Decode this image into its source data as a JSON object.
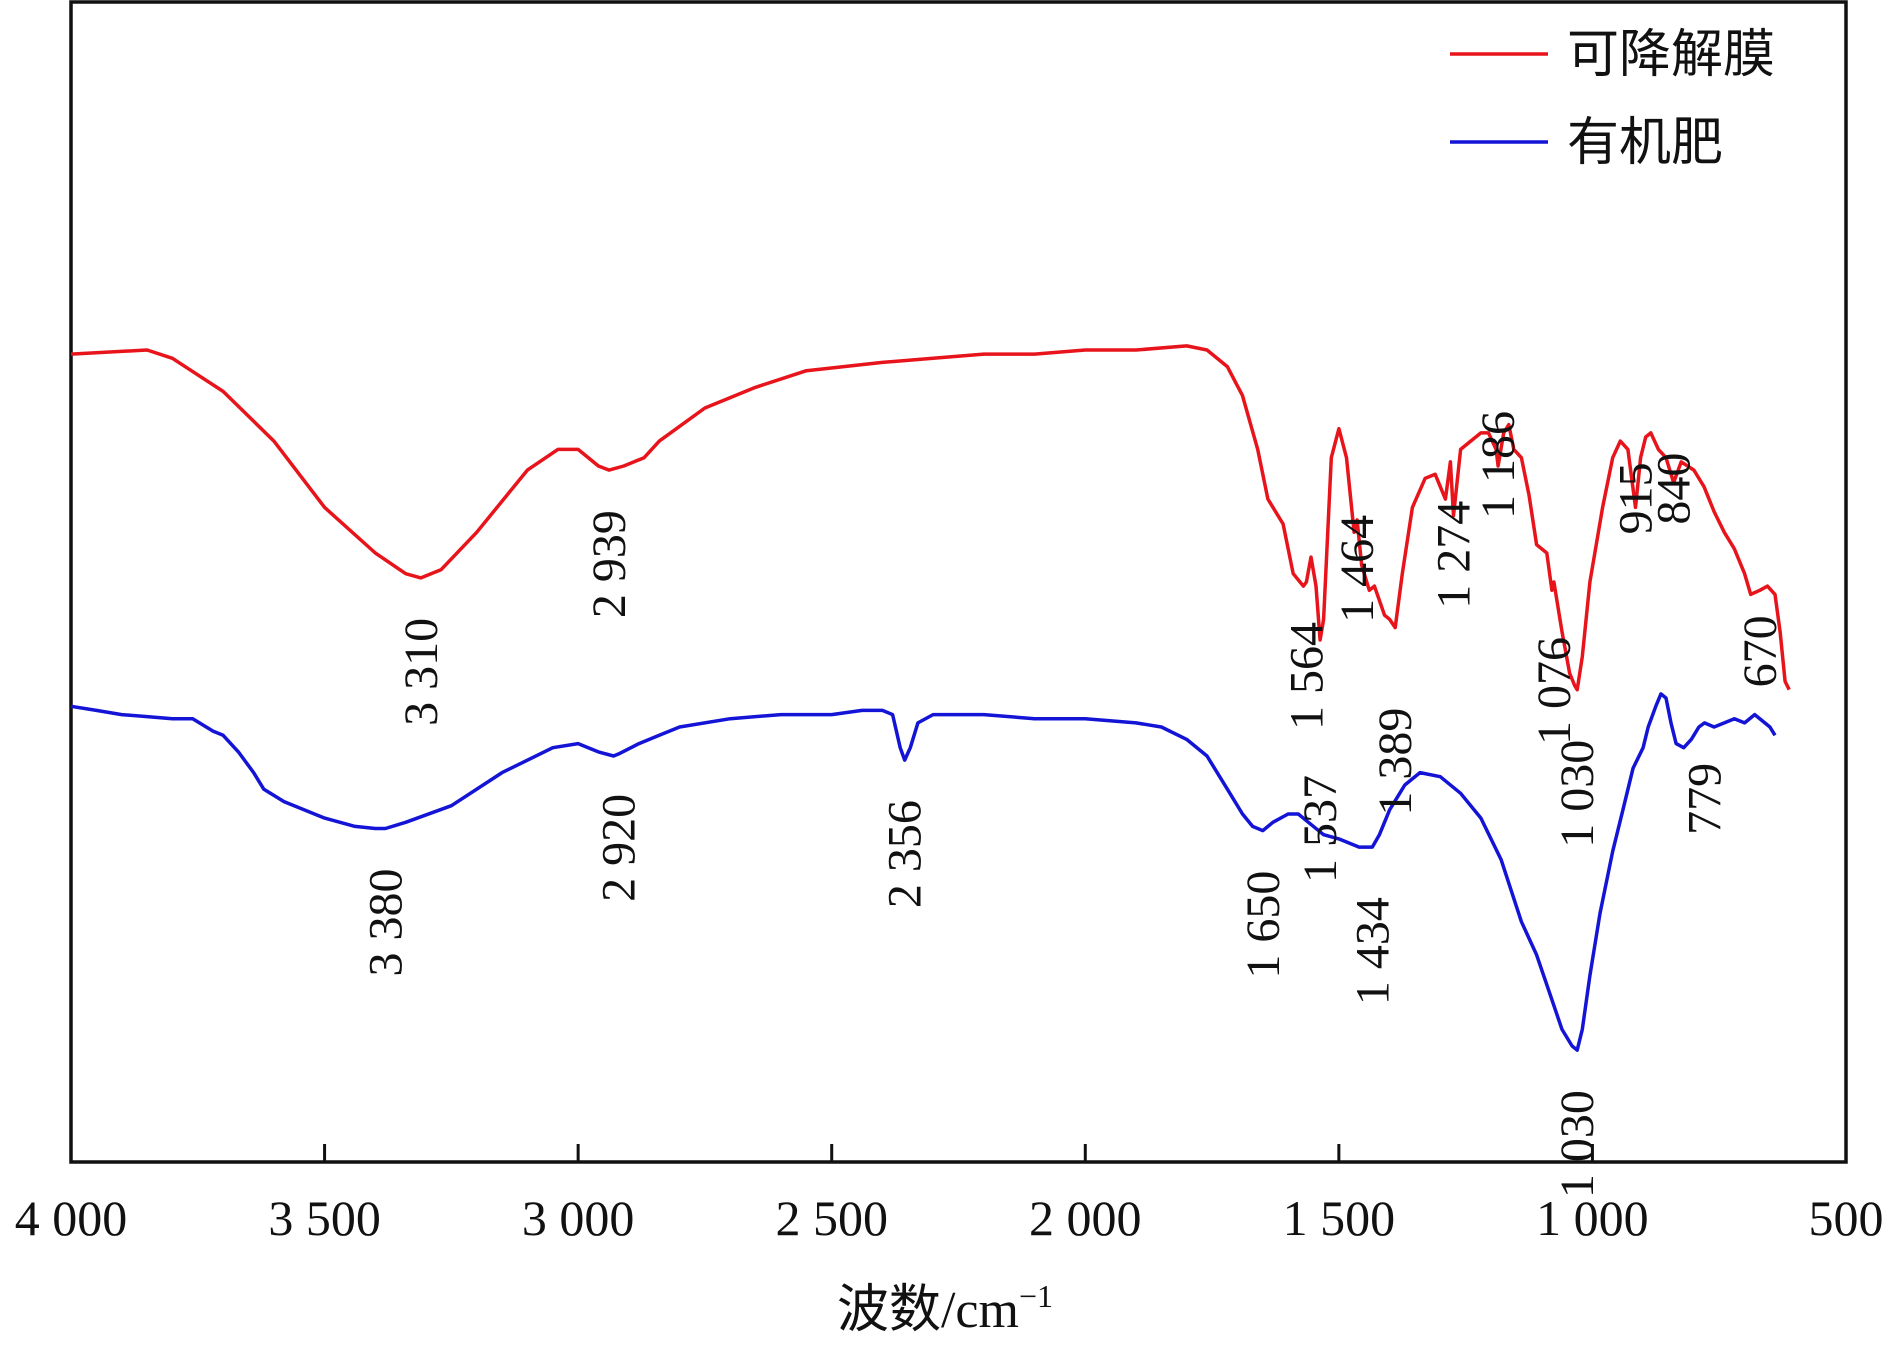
{
  "chart_data": {
    "type": "line",
    "title": "",
    "xlabel": "波数/cm",
    "xlabel_superscript": "−1",
    "ylabel": "",
    "xlim": [
      4000,
      500
    ],
    "x_reversed": true,
    "x_ticks": [
      4000,
      3500,
      3000,
      2500,
      2000,
      1500,
      1000,
      500
    ],
    "x_tick_labels": [
      "4 000",
      "3 500",
      "3 000",
      "2 500",
      "2 000",
      "1 500",
      "1 000",
      "500"
    ],
    "y_axis_visible_ticks": false,
    "grid": false,
    "legend_position": "top-right",
    "series": [
      {
        "name": "可降解膜",
        "color": "#e8141b",
        "points": [
          [
            4000,
            85
          ],
          [
            3850,
            84
          ],
          [
            3800,
            86
          ],
          [
            3700,
            94
          ],
          [
            3600,
            106
          ],
          [
            3500,
            122
          ],
          [
            3400,
            133
          ],
          [
            3340,
            138
          ],
          [
            3310,
            139
          ],
          [
            3270,
            137
          ],
          [
            3200,
            128
          ],
          [
            3100,
            113
          ],
          [
            3040,
            108
          ],
          [
            3000,
            108
          ],
          [
            2960,
            112
          ],
          [
            2939,
            113
          ],
          [
            2910,
            112
          ],
          [
            2870,
            110
          ],
          [
            2840,
            106
          ],
          [
            2750,
            98
          ],
          [
            2650,
            93
          ],
          [
            2550,
            89
          ],
          [
            2400,
            87
          ],
          [
            2300,
            86
          ],
          [
            2200,
            85
          ],
          [
            2100,
            85
          ],
          [
            2000,
            84
          ],
          [
            1900,
            84
          ],
          [
            1800,
            83
          ],
          [
            1760,
            84
          ],
          [
            1720,
            88
          ],
          [
            1690,
            95
          ],
          [
            1660,
            108
          ],
          [
            1640,
            120
          ],
          [
            1610,
            126
          ],
          [
            1590,
            138
          ],
          [
            1570,
            141
          ],
          [
            1564,
            140
          ],
          [
            1555,
            134
          ],
          [
            1545,
            141
          ],
          [
            1537,
            154
          ],
          [
            1530,
            149
          ],
          [
            1515,
            110
          ],
          [
            1500,
            103
          ],
          [
            1485,
            110
          ],
          [
            1470,
            128
          ],
          [
            1464,
            125
          ],
          [
            1455,
            136
          ],
          [
            1440,
            142
          ],
          [
            1430,
            141
          ],
          [
            1410,
            148
          ],
          [
            1400,
            149
          ],
          [
            1389,
            151
          ],
          [
            1375,
            138
          ],
          [
            1355,
            122
          ],
          [
            1330,
            115
          ],
          [
            1310,
            114
          ],
          [
            1290,
            120
          ],
          [
            1280,
            111
          ],
          [
            1274,
            124
          ],
          [
            1260,
            108
          ],
          [
            1240,
            106
          ],
          [
            1220,
            104
          ],
          [
            1205,
            104
          ],
          [
            1190,
            108
          ],
          [
            1186,
            112
          ],
          [
            1175,
            104
          ],
          [
            1165,
            102
          ],
          [
            1155,
            108
          ],
          [
            1140,
            110
          ],
          [
            1125,
            119
          ],
          [
            1110,
            131
          ],
          [
            1090,
            133
          ],
          [
            1080,
            142
          ],
          [
            1076,
            140
          ],
          [
            1060,
            152
          ],
          [
            1045,
            162
          ],
          [
            1035,
            165
          ],
          [
            1030,
            166
          ],
          [
            1020,
            158
          ],
          [
            1005,
            140
          ],
          [
            980,
            122
          ],
          [
            960,
            110
          ],
          [
            945,
            106
          ],
          [
            930,
            108
          ],
          [
            915,
            122
          ],
          [
            905,
            110
          ],
          [
            895,
            105
          ],
          [
            885,
            104
          ],
          [
            870,
            108
          ],
          [
            855,
            110
          ],
          [
            840,
            116
          ],
          [
            825,
            111
          ],
          [
            800,
            113
          ],
          [
            780,
            117
          ],
          [
            760,
            123
          ],
          [
            740,
            128
          ],
          [
            720,
            132
          ],
          [
            700,
            138
          ],
          [
            688,
            143
          ],
          [
            670,
            142
          ],
          [
            655,
            141
          ],
          [
            640,
            143
          ],
          [
            630,
            152
          ],
          [
            620,
            164
          ],
          [
            612,
            166
          ]
        ]
      },
      {
        "name": "有机肥",
        "color": "#1414d6",
        "points": [
          [
            4000,
            170
          ],
          [
            3950,
            171
          ],
          [
            3900,
            172
          ],
          [
            3850,
            172.5
          ],
          [
            3800,
            173
          ],
          [
            3760,
            173
          ],
          [
            3720,
            176
          ],
          [
            3700,
            177
          ],
          [
            3670,
            181
          ],
          [
            3640,
            186
          ],
          [
            3620,
            190
          ],
          [
            3580,
            193
          ],
          [
            3500,
            197
          ],
          [
            3440,
            199
          ],
          [
            3400,
            199.5
          ],
          [
            3380,
            199.5
          ],
          [
            3340,
            198
          ],
          [
            3250,
            194
          ],
          [
            3150,
            186
          ],
          [
            3050,
            180
          ],
          [
            3000,
            179
          ],
          [
            2960,
            181
          ],
          [
            2930,
            182
          ],
          [
            2920,
            181.5
          ],
          [
            2880,
            179
          ],
          [
            2840,
            177
          ],
          [
            2800,
            175
          ],
          [
            2700,
            173
          ],
          [
            2600,
            172
          ],
          [
            2500,
            172
          ],
          [
            2440,
            171
          ],
          [
            2400,
            171
          ],
          [
            2380,
            172
          ],
          [
            2365,
            180
          ],
          [
            2356,
            183
          ],
          [
            2345,
            180
          ],
          [
            2330,
            174
          ],
          [
            2300,
            172
          ],
          [
            2200,
            172
          ],
          [
            2100,
            173
          ],
          [
            2000,
            173
          ],
          [
            1900,
            174
          ],
          [
            1850,
            175
          ],
          [
            1800,
            178
          ],
          [
            1760,
            182
          ],
          [
            1720,
            190
          ],
          [
            1690,
            196
          ],
          [
            1670,
            199
          ],
          [
            1650,
            200
          ],
          [
            1630,
            198
          ],
          [
            1600,
            196
          ],
          [
            1580,
            196
          ],
          [
            1560,
            198
          ],
          [
            1530,
            201
          ],
          [
            1500,
            202
          ],
          [
            1480,
            203
          ],
          [
            1460,
            204
          ],
          [
            1434,
            204
          ],
          [
            1420,
            201
          ],
          [
            1400,
            195
          ],
          [
            1370,
            189
          ],
          [
            1340,
            186
          ],
          [
            1300,
            187
          ],
          [
            1260,
            191
          ],
          [
            1220,
            197
          ],
          [
            1180,
            207
          ],
          [
            1140,
            222
          ],
          [
            1110,
            230
          ],
          [
            1085,
            239
          ],
          [
            1060,
            248
          ],
          [
            1040,
            252
          ],
          [
            1030,
            253
          ],
          [
            1020,
            248
          ],
          [
            1005,
            235
          ],
          [
            985,
            220
          ],
          [
            960,
            205
          ],
          [
            940,
            195
          ],
          [
            920,
            185
          ],
          [
            900,
            180
          ],
          [
            890,
            175
          ],
          [
            875,
            170
          ],
          [
            865,
            167
          ],
          [
            855,
            168
          ],
          [
            845,
            174
          ],
          [
            835,
            179
          ],
          [
            820,
            180
          ],
          [
            805,
            178
          ],
          [
            790,
            175
          ],
          [
            779,
            174
          ],
          [
            760,
            175
          ],
          [
            740,
            174
          ],
          [
            720,
            173
          ],
          [
            700,
            174
          ],
          [
            680,
            172
          ],
          [
            670,
            173
          ],
          [
            650,
            175
          ],
          [
            640,
            177
          ]
        ]
      }
    ],
    "annotations": [
      {
        "text": "3 310",
        "x": 3310,
        "series": "可降解膜"
      },
      {
        "text": "2 939",
        "x": 2939,
        "series": "可降解膜"
      },
      {
        "text": "1 564",
        "x": 1564,
        "series": "可降解膜"
      },
      {
        "text": "1 537",
        "x": 1537,
        "series": "可降解膜"
      },
      {
        "text": "1 464",
        "x": 1464,
        "series": "可降解膜"
      },
      {
        "text": "1 389",
        "x": 1389,
        "series": "可降解膜"
      },
      {
        "text": "1 274",
        "x": 1274,
        "series": "可降解膜"
      },
      {
        "text": "1 186",
        "x": 1186,
        "series": "可降解膜"
      },
      {
        "text": "1 076",
        "x": 1076,
        "series": "可降解膜"
      },
      {
        "text": "1 030",
        "x": 1030,
        "series": "可降解膜"
      },
      {
        "text": "915",
        "x": 915,
        "series": "可降解膜"
      },
      {
        "text": "840",
        "x": 840,
        "series": "可降解膜"
      },
      {
        "text": "670",
        "x": 670,
        "series": "可降解膜"
      },
      {
        "text": "3 380",
        "x": 3380,
        "series": "有机肥"
      },
      {
        "text": "2 920",
        "x": 2920,
        "series": "有机肥"
      },
      {
        "text": "2 356",
        "x": 2356,
        "series": "有机肥"
      },
      {
        "text": "1 650",
        "x": 1650,
        "series": "有机肥"
      },
      {
        "text": "1 434",
        "x": 1434,
        "series": "有机肥"
      },
      {
        "text": "1 030",
        "x": 1030,
        "series": "有机肥"
      },
      {
        "text": "779",
        "x": 779,
        "series": "有机肥"
      }
    ]
  }
}
